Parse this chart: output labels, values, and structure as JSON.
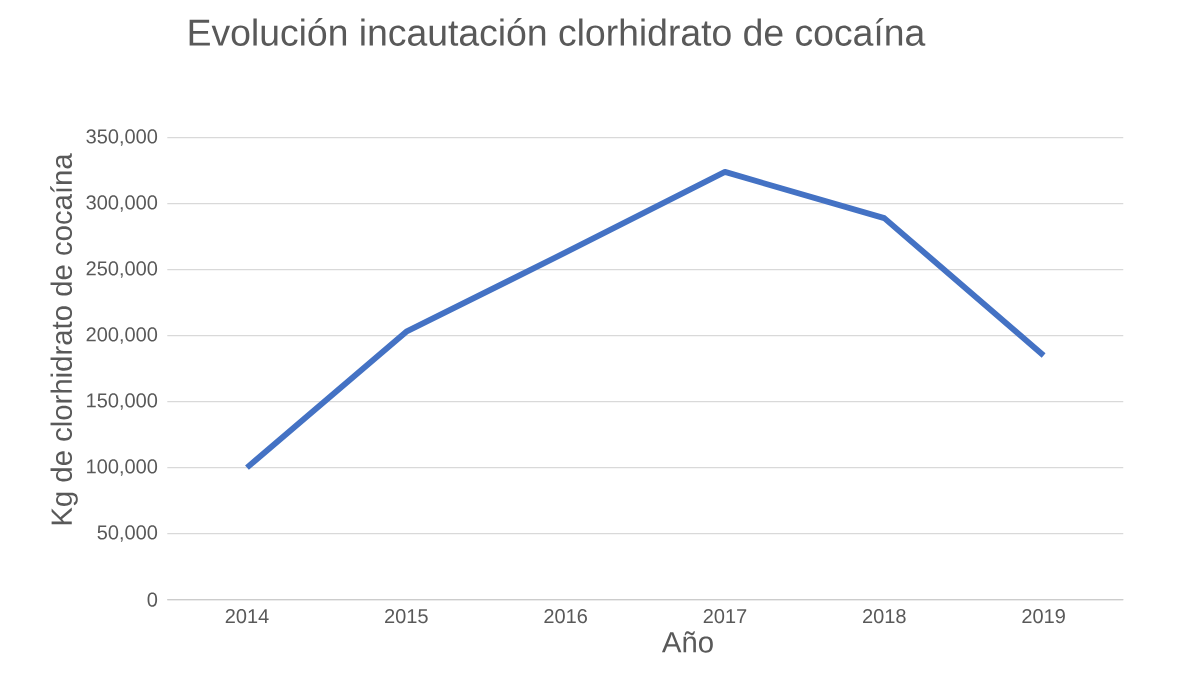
{
  "chart_data": {
    "type": "line",
    "title": "Evolución incautación clorhidrato de cocaína",
    "xlabel": "Año",
    "ylabel": "Kg de clorhidrato de cocaína",
    "categories": [
      "2014",
      "2015",
      "2016",
      "2017",
      "2018",
      "2019"
    ],
    "values": [
      100000,
      203000,
      263000,
      324000,
      289000,
      185000
    ],
    "color": "#4472c4",
    "ylim": [
      0,
      350000
    ],
    "yticks": [
      {
        "value": 0,
        "label": "0"
      },
      {
        "value": 50000,
        "label": "50,000"
      },
      {
        "value": 100000,
        "label": "100,000"
      },
      {
        "value": 150000,
        "label": "150,000"
      },
      {
        "value": 200000,
        "label": "200,000"
      },
      {
        "value": 250000,
        "label": "250,000"
      },
      {
        "value": 300000,
        "label": "300,000"
      },
      {
        "value": 350000,
        "label": "350,000"
      }
    ],
    "grid": "y",
    "marker": "none",
    "line_style": "solid"
  }
}
